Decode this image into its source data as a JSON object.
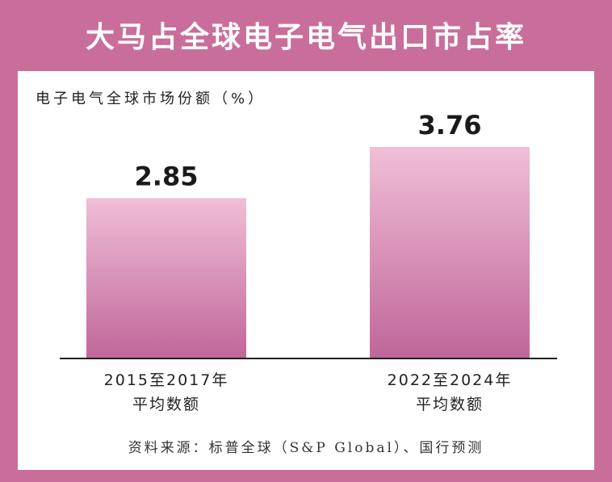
{
  "header": {
    "title": "大马占全球电子电气出口市占率"
  },
  "chart_data": {
    "type": "bar",
    "ylabel": "电子电气全球市场份额（%）",
    "categories": [
      {
        "line1": "2015至2017年",
        "line2": "平均数额"
      },
      {
        "line1": "2022至2024年",
        "line2": "平均数额"
      }
    ],
    "values": [
      2.85,
      3.76
    ],
    "value_labels": [
      "2.85",
      "3.76"
    ],
    "ylim": [
      0,
      3.76
    ]
  },
  "footer": {
    "source": "资料来源：标普全球（S&P Global）、国行预测"
  },
  "colors": {
    "frame": "#c96e9b",
    "bar_top": "#f0bfd6",
    "bar_bottom": "#c0669a",
    "axis": "#222222"
  }
}
